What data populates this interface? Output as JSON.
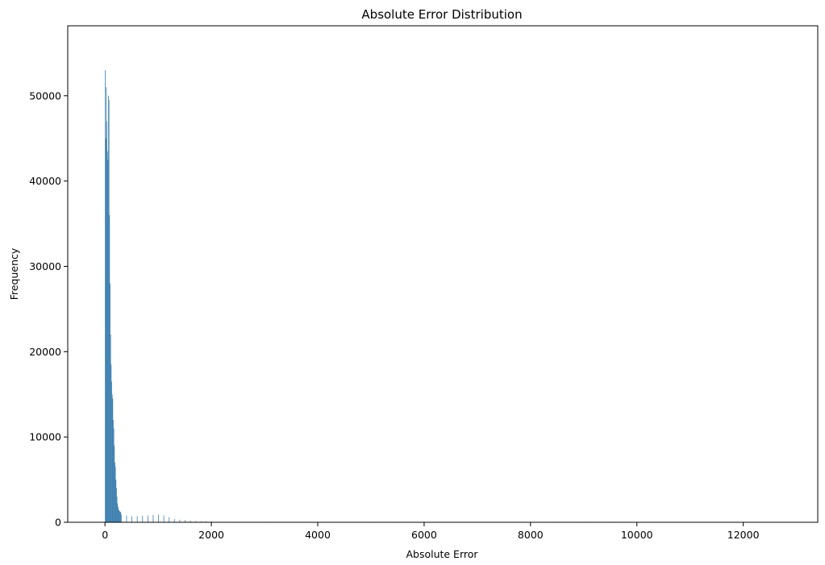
{
  "chart_data": {
    "type": "bar",
    "title": "Absolute Error Distribution",
    "xlabel": "Absolute Error",
    "ylabel": "Frequency",
    "xlim": [
      -700,
      13400
    ],
    "ylim": [
      0,
      58200
    ],
    "xticks": [
      0,
      2000,
      4000,
      6000,
      8000,
      10000,
      12000
    ],
    "yticks": [
      0,
      10000,
      20000,
      30000,
      40000,
      50000
    ],
    "bin_width": 10,
    "color": "#3c7fb0",
    "grid": false,
    "series": [
      {
        "x": [
          0,
          10,
          20,
          30,
          40,
          50,
          60,
          70,
          80,
          90,
          100,
          110,
          120,
          130,
          140,
          150,
          160,
          170,
          180,
          190,
          200,
          210,
          220,
          230,
          240,
          250,
          260,
          270,
          280,
          290,
          300,
          400,
          500,
          600,
          700,
          800,
          900,
          1000,
          1100,
          1200,
          1300,
          1400,
          1500,
          1600,
          1700,
          1800,
          1900,
          2000,
          2500,
          3000,
          3500,
          4000,
          4500,
          5000,
          5500,
          6000,
          6500,
          7000,
          7500,
          8000,
          8500,
          9000,
          9500,
          10000,
          10500,
          11000,
          11500,
          12000,
          12500,
          13000
        ],
        "values": [
          53000,
          45000,
          51000,
          47000,
          43500,
          42500,
          50000,
          49500,
          36000,
          28000,
          22000,
          18500,
          16500,
          15000,
          14500,
          12000,
          11000,
          9000,
          7000,
          6500,
          5000,
          4000,
          3000,
          2200,
          1800,
          1500,
          1400,
          1300,
          1200,
          1200,
          900,
          800,
          700,
          700,
          750,
          800,
          850,
          900,
          800,
          600,
          400,
          300,
          250,
          200,
          150,
          120,
          100,
          80,
          60,
          50,
          40,
          35,
          40,
          60,
          50,
          70,
          30,
          30,
          40,
          60,
          60,
          70,
          70,
          50,
          40,
          30,
          20,
          15,
          10,
          10
        ]
      }
    ]
  }
}
